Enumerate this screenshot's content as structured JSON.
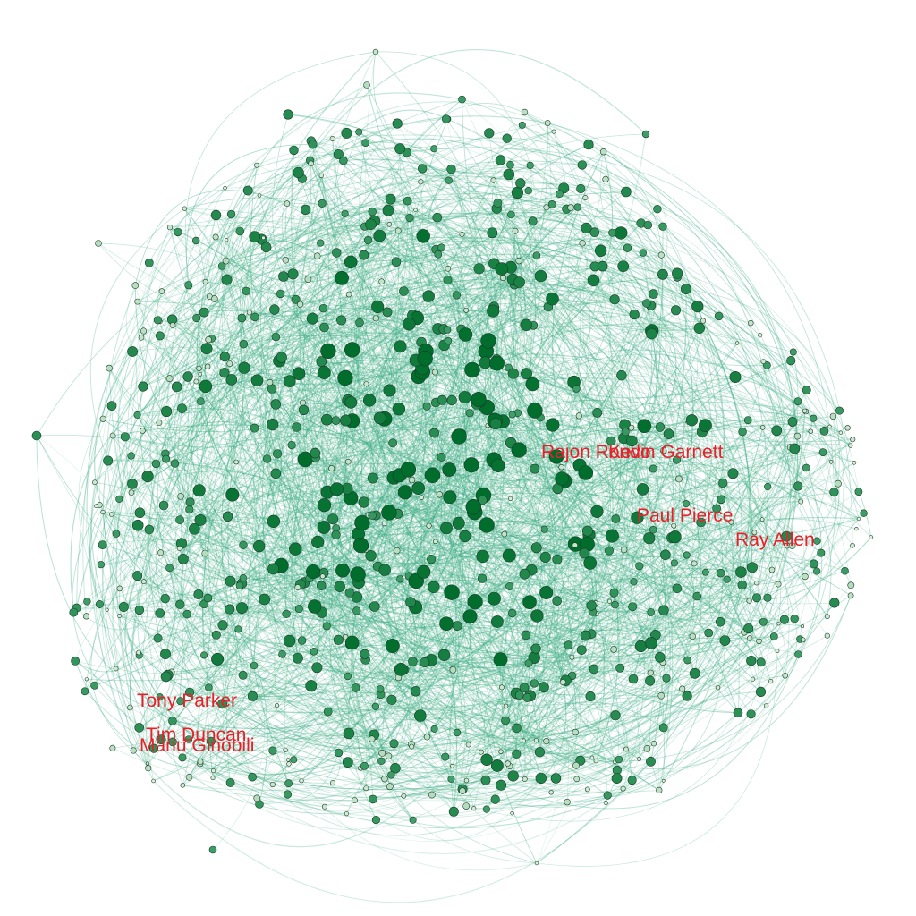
{
  "graph": {
    "labels": [
      {
        "key": "rajon_rondo",
        "text": "Rajon Rondo"
      },
      {
        "key": "kevin_garnett",
        "text": "Kevin Garnett"
      },
      {
        "key": "paul_pierce",
        "text": "Paul Pierce"
      },
      {
        "key": "ray_allen",
        "text": "Ray Allen"
      },
      {
        "key": "tony_parker",
        "text": "Tony Parker"
      },
      {
        "key": "tim_duncan",
        "text": "Tim Duncan"
      },
      {
        "key": "manu_ginobili",
        "text": "Manu Ginobili"
      }
    ],
    "colors": {
      "background": "#ffffff",
      "edge": "#3fae85",
      "node_dark": "#006d2c",
      "node_mid": "#41a06a",
      "node_light": "#e5f5e0",
      "node_stroke": "#1b3a2a",
      "label": "#e8202a"
    }
  }
}
